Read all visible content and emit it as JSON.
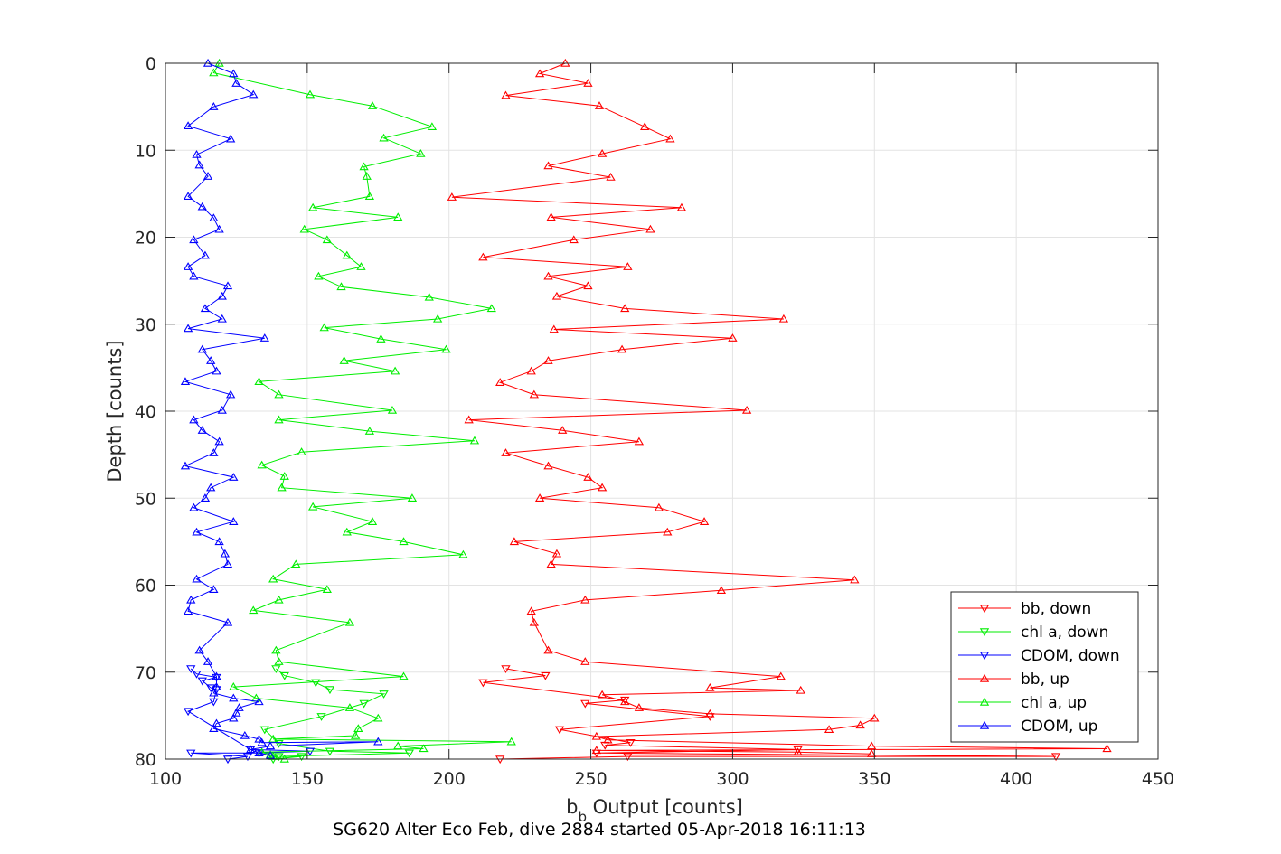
{
  "chart_data": {
    "type": "line",
    "caption": "SG620 Alter Eco Feb, dive 2884 started 05-Apr-2018 16:11:13",
    "xlabel_main": "b",
    "xlabel_sub": "b",
    "xlabel_rest": " Output [counts]",
    "ylabel": "Depth [counts]",
    "xlim": [
      100,
      450
    ],
    "ylim": [
      0,
      80
    ],
    "y_reversed": true,
    "grid": true,
    "legend_location": "bottom-right",
    "xticks": [
      100,
      150,
      200,
      250,
      300,
      350,
      400,
      450
    ],
    "yticks": [
      0,
      10,
      20,
      30,
      40,
      50,
      60,
      70,
      80
    ],
    "series": [
      {
        "name": "bb, down",
        "color": "#ff0000",
        "marker": "triangle-down",
        "x": [
          218,
          263,
          414,
          252,
          323,
          255,
          264,
          239,
          292,
          248,
          262,
          212,
          234,
          220
        ],
        "y": [
          80,
          79.7,
          79.7,
          79.3,
          78.9,
          78.4,
          78.1,
          76.6,
          75.1,
          73.6,
          73.2,
          71.2,
          70.4,
          69.6
        ]
      },
      {
        "name": "chl a, down",
        "color": "#00ee00",
        "marker": "triangle-down",
        "x": [
          138,
          148,
          140,
          186,
          158,
          140,
          135,
          155,
          170,
          177,
          158,
          153,
          142,
          139
        ],
        "y": [
          80,
          79.7,
          79.7,
          79.3,
          79.1,
          78.2,
          76.6,
          75.1,
          73.6,
          72.5,
          72.0,
          71.2,
          70.4,
          69.6
        ]
      },
      {
        "name": "CDOM, down",
        "color": "#0000ff",
        "marker": "triangle-down",
        "x": [
          122,
          129,
          109,
          133,
          151,
          130,
          108,
          117,
          118,
          116,
          113,
          118,
          111,
          109
        ],
        "y": [
          80,
          79.7,
          79.3,
          79.3,
          79.1,
          78.9,
          74.5,
          73.4,
          72.0,
          71.8,
          71.0,
          70.6,
          70.2,
          69.6
        ]
      },
      {
        "name": "bb, up",
        "color": "#ff0000",
        "marker": "triangle-up",
        "x": [
          241,
          232,
          249,
          220,
          253,
          269,
          278,
          254,
          235,
          257,
          201,
          282,
          236,
          271,
          244,
          212,
          263,
          235,
          249,
          238,
          262,
          318,
          237,
          300,
          261,
          235,
          229,
          218,
          230,
          305,
          207,
          240,
          267,
          220,
          235,
          249,
          254,
          232,
          274,
          290,
          277,
          223,
          238,
          236,
          343,
          296,
          248,
          229,
          230,
          235,
          248,
          317,
          292,
          324,
          254,
          262,
          267,
          292,
          350,
          345,
          334,
          252,
          256,
          349,
          432,
          252,
          323,
          349
        ],
        "y": [
          0,
          1.2,
          2.3,
          3.7,
          4.9,
          7.3,
          8.7,
          10.4,
          11.8,
          13.1,
          15.4,
          16.6,
          17.7,
          19.1,
          20.3,
          22.3,
          23.4,
          24.5,
          25.6,
          26.8,
          28.2,
          29.4,
          30.6,
          31.6,
          32.9,
          34.2,
          35.4,
          36.7,
          38.1,
          39.9,
          41.0,
          42.2,
          43.5,
          44.8,
          46.3,
          47.6,
          48.8,
          50.0,
          51.1,
          52.7,
          53.9,
          55.0,
          56.4,
          57.6,
          59.4,
          60.6,
          61.7,
          63.0,
          64.3,
          67.5,
          68.8,
          70.5,
          71.8,
          72.1,
          72.6,
          73.4,
          74.1,
          74.8,
          75.3,
          76.1,
          76.6,
          77.4,
          77.8,
          78.5,
          78.8,
          79.0,
          79.2,
          79.4
        ]
      },
      {
        "name": "chl a, up",
        "color": "#00ee00",
        "marker": "triangle-up",
        "x": [
          119,
          117,
          151,
          173,
          194,
          177,
          190,
          170,
          171,
          172,
          152,
          182,
          149,
          157,
          164,
          169,
          154,
          162,
          193,
          215,
          196,
          156,
          176,
          199,
          163,
          181,
          133,
          140,
          180,
          140,
          172,
          209,
          148,
          134,
          142,
          141,
          187,
          152,
          173,
          164,
          184,
          205,
          146,
          138,
          157,
          140,
          131,
          165,
          139,
          140,
          184,
          124,
          132,
          165,
          175,
          168,
          167,
          138,
          222,
          182,
          191,
          134,
          137,
          138,
          142
        ],
        "y": [
          0,
          1.1,
          3.6,
          4.9,
          7.3,
          8.6,
          10.4,
          11.9,
          13.0,
          15.3,
          16.6,
          17.7,
          19.1,
          20.3,
          22.1,
          23.4,
          24.5,
          25.7,
          26.9,
          28.2,
          29.4,
          30.4,
          31.7,
          32.9,
          34.2,
          35.4,
          36.6,
          38.1,
          39.9,
          41.0,
          42.3,
          43.4,
          44.7,
          46.2,
          47.5,
          48.8,
          50.0,
          51.0,
          52.7,
          53.9,
          55.0,
          56.5,
          57.6,
          59.3,
          60.5,
          61.7,
          62.9,
          64.3,
          67.5,
          68.8,
          70.5,
          71.7,
          73.0,
          74.1,
          75.3,
          76.5,
          77.3,
          77.7,
          78.0,
          78.5,
          78.8,
          79.2,
          79.5,
          79.7,
          80.0
        ]
      },
      {
        "name": "CDOM, up",
        "color": "#0000ff",
        "marker": "triangle-up",
        "x": [
          115,
          124,
          125,
          131,
          117,
          108,
          123,
          111,
          112,
          115,
          108,
          113,
          117,
          119,
          110,
          114,
          108,
          110,
          122,
          120,
          114,
          120,
          108,
          135,
          113,
          116,
          118,
          107,
          123,
          120,
          110,
          113,
          119,
          117,
          107,
          124,
          116,
          114,
          110,
          124,
          111,
          119,
          121,
          122,
          111,
          117,
          109,
          108,
          122,
          112,
          115,
          118,
          118,
          117,
          124,
          133,
          126,
          125,
          124,
          118,
          117,
          128,
          133,
          134,
          175,
          137,
          130,
          133,
          137
        ],
        "y": [
          0,
          1.2,
          2.3,
          3.6,
          5.0,
          7.2,
          8.7,
          10.5,
          11.7,
          13.0,
          15.3,
          16.5,
          17.8,
          19.1,
          20.3,
          22.1,
          23.4,
          24.5,
          25.6,
          26.8,
          28.2,
          29.4,
          30.5,
          31.6,
          32.9,
          34.2,
          35.4,
          36.6,
          38.1,
          39.9,
          41.0,
          42.2,
          43.5,
          44.8,
          46.3,
          47.6,
          48.8,
          50.0,
          51.1,
          52.7,
          53.9,
          55.0,
          56.4,
          57.6,
          59.3,
          60.5,
          61.7,
          63.0,
          64.3,
          67.5,
          68.8,
          70.5,
          71.7,
          72.4,
          73.0,
          73.4,
          74.1,
          74.7,
          75.3,
          75.9,
          76.5,
          77.3,
          77.7,
          78.1,
          78.0,
          78.5,
          78.9,
          79.3,
          79.6
        ]
      }
    ]
  }
}
